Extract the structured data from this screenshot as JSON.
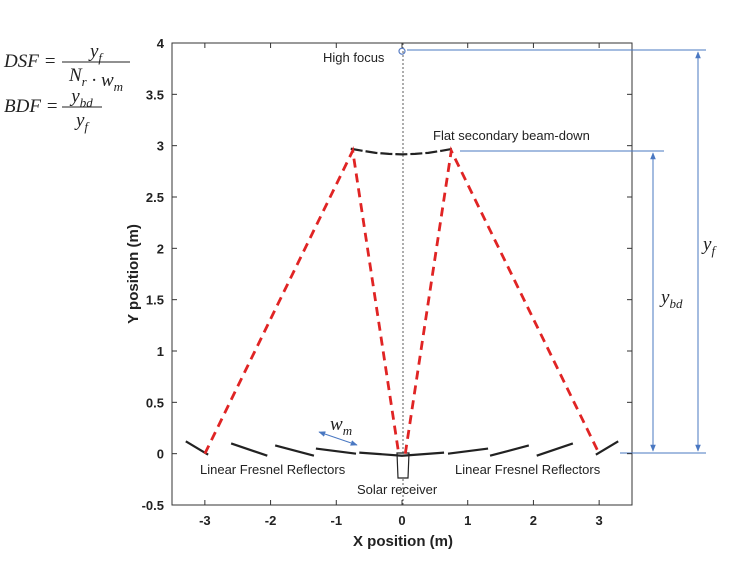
{
  "chart_data": {
    "type": "line",
    "xlabel": "X position (m)",
    "ylabel": "Y position (m)",
    "xlim": [
      -3.5,
      3.5
    ],
    "xticks": [
      -3,
      -2,
      -1,
      0,
      1,
      2,
      3
    ],
    "ylim": [
      -0.5,
      4
    ],
    "yticks": [
      -0.5,
      0,
      0.5,
      1,
      1.5,
      2,
      2.5,
      3,
      3.5,
      4
    ],
    "grid": false,
    "annotations": {
      "high_focus": "High focus",
      "secondary": "Flat secondary beam-down",
      "lfr_left": "Linear Fresnel Reflectors",
      "lfr_right": "Linear Fresnel Reflectors",
      "receiver": "Solar receiver"
    },
    "dimension_labels": {
      "yf": {
        "t": "y",
        "sub": "f"
      },
      "ybd": {
        "t": "y",
        "sub": "bd"
      },
      "wm": {
        "t": "w",
        "sub": "m"
      }
    },
    "formulas": [
      {
        "lhs": "DSF =",
        "numerator": [
          {
            "t": "y",
            "sub": "f"
          }
        ],
        "denominator": [
          {
            "t": "N",
            "sub": "r"
          },
          {
            "t": " · "
          },
          {
            "t": "w",
            "sub": "m"
          }
        ]
      },
      {
        "lhs": "BDF =",
        "numerator": [
          {
            "t": "y",
            "sub": "bd"
          }
        ],
        "denominator": [
          {
            "t": "y",
            "sub": "f"
          }
        ]
      }
    ],
    "high_focus_point": {
      "x": 0,
      "y": 3.92,
      "color": "#5b7fc4"
    },
    "rays": {
      "color": "#e02424",
      "lines": [
        {
          "x": [
            -3,
            -0.75,
            -0.05
          ],
          "y": [
            0,
            2.95,
            0
          ]
        },
        {
          "x": [
            0.05,
            0.75,
            3
          ],
          "y": [
            0,
            2.95,
            0
          ]
        }
      ]
    },
    "secondary_mirror": {
      "color": "#222",
      "x": [
        -0.78,
        -0.6,
        -0.4,
        -0.2,
        0,
        0.2,
        0.4,
        0.6,
        0.78
      ],
      "y": [
        2.97,
        2.95,
        2.93,
        2.92,
        2.915,
        2.92,
        2.93,
        2.95,
        2.97
      ]
    },
    "reflectors": {
      "color": "#222",
      "segments": [
        {
          "x": [
            -3.29,
            -2.95
          ],
          "y": [
            0.12,
            -0.01
          ]
        },
        {
          "x": [
            -2.6,
            -2.05
          ],
          "y": [
            0.1,
            -0.02
          ]
        },
        {
          "x": [
            -1.93,
            -1.34
          ],
          "y": [
            0.08,
            -0.02
          ]
        },
        {
          "x": [
            -1.31,
            -0.7
          ],
          "y": [
            0.05,
            0
          ]
        },
        {
          "x": [
            -0.65,
            0,
            0.64
          ],
          "y": [
            0.01,
            -0.02,
            0.01
          ]
        },
        {
          "x": [
            0.7,
            1.31
          ],
          "y": [
            0,
            0.05
          ]
        },
        {
          "x": [
            1.34,
            1.93
          ],
          "y": [
            -0.02,
            0.08
          ]
        },
        {
          "x": [
            2.05,
            2.6
          ],
          "y": [
            -0.02,
            0.1
          ]
        },
        {
          "x": [
            2.95,
            3.29
          ],
          "y": [
            -0.01,
            0.12
          ]
        }
      ]
    }
  }
}
